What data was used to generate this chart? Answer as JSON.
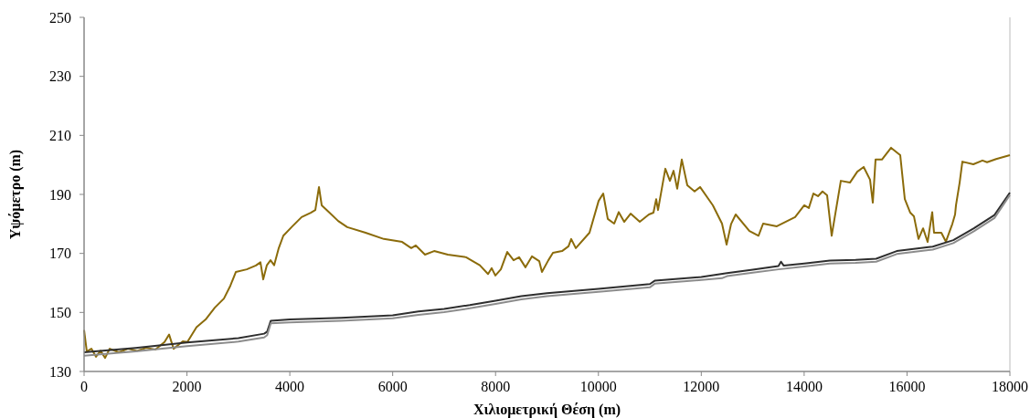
{
  "chart_data": {
    "type": "line",
    "xlabel": "Χιλιομετρική Θέση (m)",
    "ylabel": "Υψόμετρο (m)",
    "xlim": [
      0,
      18000
    ],
    "ylim": [
      130,
      250
    ],
    "xticks": [
      0,
      2000,
      4000,
      6000,
      8000,
      10000,
      12000,
      14000,
      16000,
      18000
    ],
    "yticks": [
      130,
      150,
      170,
      190,
      210,
      230,
      250
    ],
    "grid": false,
    "marker": "none",
    "line_style": "solid",
    "series": [
      {
        "color": "#8b6b0a",
        "x": [
          0,
          53,
          142,
          231,
          320,
          409,
          498,
          675,
          853,
          1031,
          1208,
          1386,
          1564,
          1653,
          1741,
          1919,
          2008,
          2186,
          2363,
          2541,
          2719,
          2843,
          2950,
          3163,
          3341,
          3429,
          3483,
          3554,
          3625,
          3696,
          3785,
          3874,
          4051,
          4229,
          4407,
          4496,
          4567,
          4620,
          4762,
          4940,
          5117,
          5473,
          5828,
          6184,
          6361,
          6450,
          6628,
          6806,
          7072,
          7427,
          7694,
          7854,
          7925,
          7996,
          8103,
          8227,
          8351,
          8458,
          8582,
          8707,
          8849,
          8902,
          9027,
          9116,
          9293,
          9418,
          9471,
          9560,
          9826,
          10004,
          10093,
          10182,
          10306,
          10395,
          10501,
          10626,
          10804,
          10981,
          11070,
          11123,
          11159,
          11301,
          11390,
          11461,
          11532,
          11621,
          11728,
          11870,
          11976,
          12225,
          12403,
          12492,
          12580,
          12669,
          12936,
          13113,
          13202,
          13469,
          13824,
          14002,
          14091,
          14180,
          14269,
          14357,
          14446,
          14535,
          14713,
          14890,
          15033,
          15157,
          15281,
          15335,
          15388,
          15512,
          15690,
          15868,
          15957,
          16063,
          16134,
          16223,
          16312,
          16401,
          16490,
          16525,
          16667,
          16756,
          16881,
          16934,
          16952,
          17023,
          17076,
          17289,
          17467,
          17556,
          17733,
          18000
        ],
        "values": [
          144,
          136.8,
          137.7,
          135,
          137,
          134.6,
          137.7,
          136.5,
          137.7,
          137,
          138,
          137.4,
          140,
          142.5,
          137.7,
          140.2,
          140,
          145,
          147.6,
          151.6,
          154.7,
          159,
          163.7,
          164.6,
          165.9,
          167,
          161.2,
          166,
          167.7,
          166,
          171.8,
          176,
          179.2,
          182.3,
          183.8,
          184.7,
          192.5,
          186.3,
          184,
          181,
          178.9,
          177,
          174.9,
          173.9,
          171.8,
          172.7,
          169.6,
          170.8,
          169.6,
          168.7,
          166,
          163,
          165,
          162.5,
          164.6,
          170.5,
          167.7,
          168.7,
          165.3,
          169,
          167.4,
          163.7,
          167.7,
          170.2,
          170.8,
          172.4,
          174.9,
          171.8,
          177,
          187.8,
          190.3,
          181.7,
          180.1,
          184,
          180.7,
          183.5,
          180.7,
          183.2,
          183.8,
          188.4,
          184.7,
          198.7,
          194.6,
          198,
          191.9,
          201.8,
          193.1,
          191,
          192.5,
          186.3,
          180.1,
          173,
          180,
          183.2,
          177.6,
          176,
          180.1,
          179.2,
          182.3,
          186.3,
          185.4,
          190.3,
          189.4,
          191,
          189.7,
          176,
          194.6,
          194,
          197.7,
          199.3,
          195,
          187.2,
          201.8,
          201.8,
          205.8,
          203.3,
          188.4,
          183.8,
          182.6,
          174.9,
          178.5,
          173.9,
          184,
          177,
          177,
          174,
          180,
          183.2,
          186.3,
          194,
          201.1,
          200.2,
          201.5,
          200.9,
          202,
          203.3
        ]
      },
      {
        "color": "#2e2e2e",
        "x": [
          0,
          1000,
          2000,
          3000,
          3500,
          3560,
          3630,
          4000,
          5000,
          6000,
          6500,
          7000,
          7500,
          8000,
          8500,
          9000,
          10000,
          11000,
          11100,
          12000,
          12500,
          13000,
          13500,
          13550,
          13600,
          14000,
          14500,
          15000,
          15400,
          15800,
          16500,
          16900,
          17300,
          17700,
          18000
        ],
        "values": [
          136.5,
          138,
          139.8,
          141.3,
          142.8,
          143.5,
          147.2,
          147.6,
          148.2,
          149,
          150.3,
          151.2,
          152.5,
          154,
          155.5,
          156.5,
          158,
          159.6,
          160.8,
          162,
          163.3,
          164.5,
          165.7,
          167.2,
          165.9,
          166.6,
          167.6,
          167.8,
          168.2,
          170.8,
          172.3,
          174.5,
          178.5,
          183,
          190.6
        ]
      },
      {
        "color": "#8c8c8c",
        "x": [
          0,
          1000,
          2000,
          3000,
          3500,
          3560,
          3630,
          4000,
          5000,
          6000,
          6500,
          7000,
          7500,
          8000,
          8500,
          9000,
          10000,
          11000,
          11100,
          12000,
          12400,
          12500,
          13000,
          13500,
          14000,
          14500,
          15000,
          15400,
          15800,
          16500,
          16900,
          17300,
          17700,
          18000
        ],
        "values": [
          135.3,
          136.8,
          138.6,
          140.1,
          141.5,
          142.3,
          146.3,
          146.6,
          147.2,
          148,
          149.2,
          150.1,
          151.4,
          152.9,
          154.4,
          155.5,
          157,
          158.5,
          159.8,
          161,
          161.6,
          162.3,
          163.5,
          164.6,
          165.6,
          166.6,
          166.8,
          167.2,
          169.8,
          171.3,
          173.5,
          177.5,
          182,
          189.8
        ]
      }
    ]
  }
}
